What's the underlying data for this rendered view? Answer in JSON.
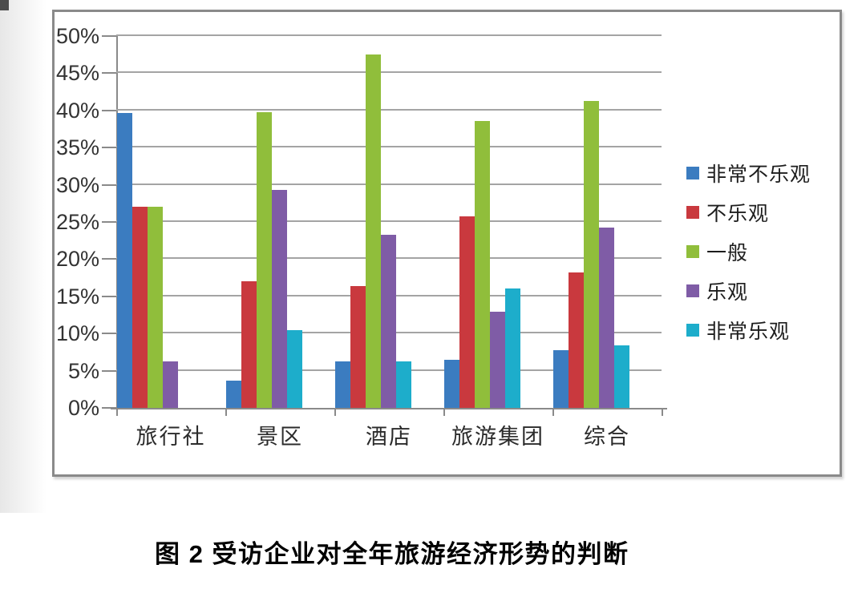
{
  "caption": "图 2 受访企业对全年旅游经济形势的判断",
  "chart_data": {
    "type": "bar",
    "title": "图 2 受访企业对全年旅游经济形势的判断",
    "categories": [
      "旅行社",
      "景区",
      "酒店",
      "旅游集团",
      "综合"
    ],
    "series": [
      {
        "name": "非常不乐观",
        "color": "#3b7cc0",
        "values": [
          39.7,
          3.7,
          6.3,
          6.5,
          7.8
        ]
      },
      {
        "name": "不乐观",
        "color": "#c9393e",
        "values": [
          27.0,
          17.0,
          16.4,
          25.8,
          18.2
        ]
      },
      {
        "name": "一般",
        "color": "#90be3b",
        "values": [
          27.0,
          39.8,
          47.5,
          38.6,
          41.3
        ]
      },
      {
        "name": "乐观",
        "color": "#7f5ca6",
        "values": [
          6.3,
          29.3,
          23.3,
          12.9,
          24.2
        ]
      },
      {
        "name": "非常乐观",
        "color": "#1dadcb",
        "values": [
          0,
          10.5,
          6.3,
          16.1,
          8.4
        ]
      }
    ],
    "ylim": [
      0,
      50
    ],
    "ytick_step": 5,
    "ytick_labels": [
      "50%",
      "45%",
      "40%",
      "35%",
      "30%",
      "25%",
      "20%",
      "15%",
      "10%",
      "5%",
      "0%"
    ],
    "xlabel": "",
    "ylabel": "",
    "grid": true,
    "legend_position": "right",
    "colors_note": {
      "gridline": "#a4a4a4",
      "axis": "#8a8a8a",
      "frame_border": "#8a8a8a"
    }
  }
}
